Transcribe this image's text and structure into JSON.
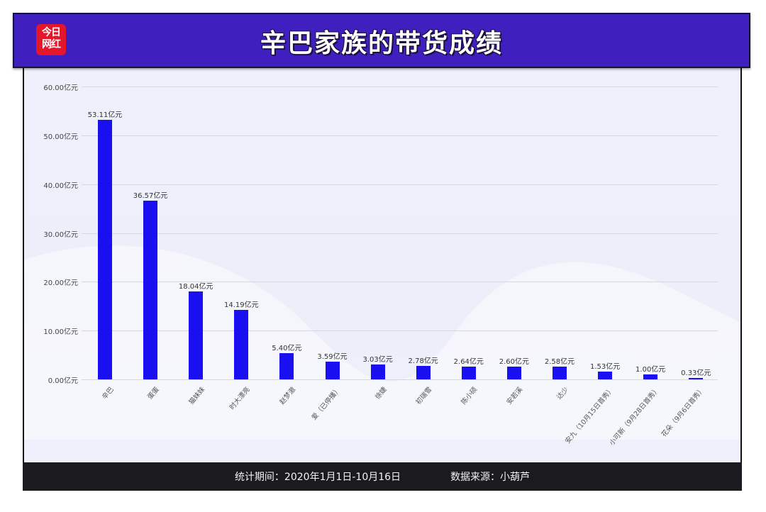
{
  "header": {
    "logo_line1": "今日",
    "logo_line2": "网红",
    "title": "辛巴家族的带货成绩",
    "bg_color": "#3f1fbd",
    "logo_color": "#e3162b"
  },
  "footer": {
    "period": "统计期间：2020年1月1日-10月16日",
    "source": "数据来源：小葫芦"
  },
  "chart_data": {
    "type": "bar",
    "title": "辛巴家族的带货成绩",
    "xlabel": "",
    "ylabel": "",
    "unit": "亿元",
    "ylim": [
      0,
      60
    ],
    "yticks": [
      "0.00亿元",
      "10.00亿元",
      "20.00亿元",
      "30.00亿元",
      "40.00亿元",
      "50.00亿元",
      "60.00亿元"
    ],
    "grid": true,
    "legend": null,
    "bar_color": "#1a0ff0",
    "categories": [
      "辛巴",
      "蛋蛋",
      "猫妹妹",
      "时大漂亮",
      "赵梦澈",
      "爱（已停播）",
      "徐婕",
      "初瑞雪",
      "陈小硕",
      "安若溪",
      "达少",
      "安九（10月15日首秀）",
      "小可新（9月28日首秀）",
      "花朵（9月6日首秀）"
    ],
    "values": [
      53.11,
      36.57,
      18.04,
      14.19,
      5.4,
      3.59,
      3.03,
      2.78,
      2.64,
      2.6,
      2.58,
      1.53,
      1.0,
      0.33
    ],
    "value_labels": [
      "53.11亿元",
      "36.57亿元",
      "18.04亿元",
      "14.19亿元",
      "5.40亿元",
      "3.59亿元",
      "3.03亿元",
      "2.78亿元",
      "2.64亿元",
      "2.60亿元",
      "2.58亿元",
      "1.53亿元",
      "1.00亿元",
      "0.33亿元"
    ]
  }
}
